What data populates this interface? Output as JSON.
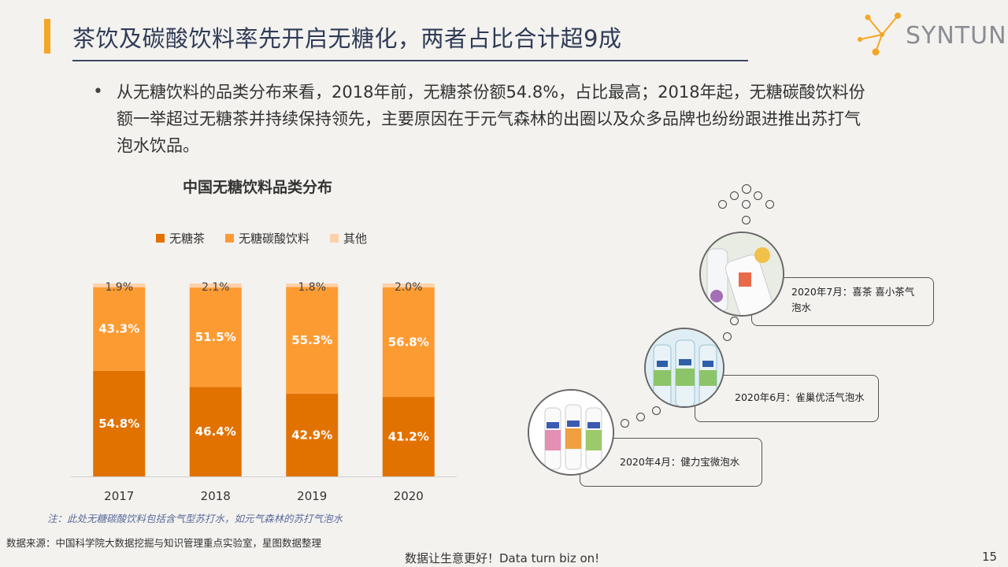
{
  "header": {
    "title": "茶饮及碳酸饮料率先开启无糖化，两者占比合计超9成",
    "logo_text": "SYNTUN"
  },
  "bullet": {
    "line1": "从无糖饮料的品类分布来看，2018年前，无糖茶份额54.8%，占比最高；2018年起，无糖碳酸饮料份",
    "line2": "额一举超过无糖茶并持续保持领先，主要原因在于元气森林的出圈以及众多品牌也纷纷跟进推出苏打气",
    "line3": "泡水饮品。"
  },
  "chart_data": {
    "type": "bar",
    "stacked": true,
    "title": "中国无糖饮料品类分布",
    "categories": [
      "2017",
      "2018",
      "2019",
      "2020"
    ],
    "series": [
      {
        "name": "无糖茶",
        "color": "#e27200",
        "values": [
          54.8,
          46.4,
          42.9,
          41.2
        ],
        "labels": [
          "54.8%",
          "46.4%",
          "42.9%",
          "41.2%"
        ]
      },
      {
        "name": "无糖碳酸饮料",
        "color": "#fd9b33",
        "values": [
          43.3,
          51.5,
          55.3,
          56.8
        ],
        "labels": [
          "43.3%",
          "51.5%",
          "55.3%",
          "56.8%"
        ]
      },
      {
        "name": "其他",
        "color": "#fcd1aa",
        "values": [
          1.9,
          2.1,
          1.8,
          2.0
        ],
        "labels": [
          "1.9%",
          "2.1%",
          "1.8%",
          "2.0%"
        ]
      }
    ],
    "ylim": [
      0,
      100
    ],
    "legend": "top",
    "grid": false
  },
  "note": "注：此处无糖碳酸饮料包括含气型苏打水，如元气森林的苏打气泡水",
  "source": "数据来源：中国科学院大数据挖掘与知识管理重点实验室，星图数据整理",
  "footer": "数据让生意更好！Data turn biz on!",
  "page_number": "15",
  "timeline": [
    {
      "label_line1": "2020年7月：喜茶  喜小茶气",
      "label_line2": "泡水",
      "icon": "bottle-photo-icon"
    },
    {
      "label_line1": "2020年6月：雀巢优活气泡水",
      "icon": "bottle-photo-icon"
    },
    {
      "label_line1": "2020年4月：健力宝微泡水",
      "icon": "bottle-photo-icon"
    }
  ]
}
